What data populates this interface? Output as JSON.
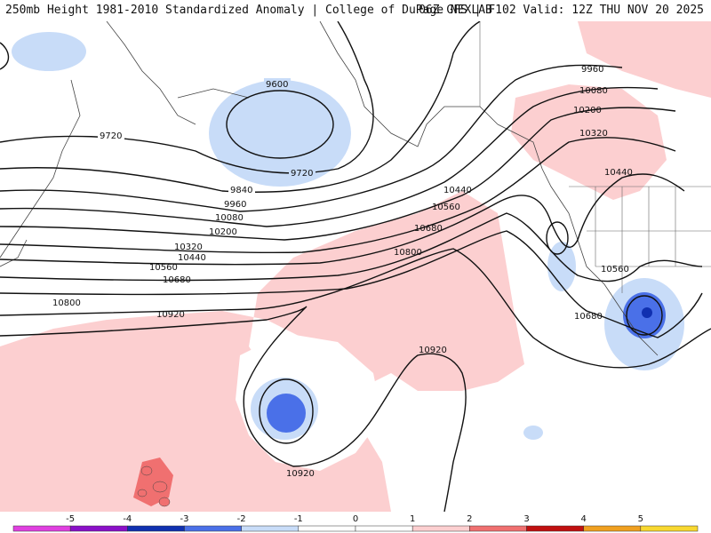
{
  "title": {
    "left": "250mb Height 1981-2010 Standardized Anomaly | College of DuPage NEXLAB",
    "right": "06Z GFS | F102 Valid: 12Z THU NOV 20 2025"
  },
  "contour_labels": [
    "9600",
    "9720",
    "9720",
    "9840",
    "9960",
    "9960",
    "10080",
    "10080",
    "10200",
    "10200",
    "10320",
    "10320",
    "10440",
    "10440",
    "10440",
    "10560",
    "10560",
    "10560",
    "10680",
    "10680",
    "10680",
    "10800",
    "10800",
    "10920",
    "10920",
    "10920"
  ],
  "colorbar": {
    "ticks": [
      "-5",
      "-4",
      "-3",
      "-2",
      "-1",
      "0",
      "1",
      "2",
      "3",
      "4",
      "5"
    ],
    "colors": [
      "#e040e0",
      "#8a10c8",
      "#1030b0",
      "#4a70e8",
      "#c8dcf8",
      "#ffffff",
      "#ffffff",
      "#fccfd0",
      "#f07070",
      "#c01010",
      "#f0a020",
      "#f8d830"
    ]
  }
}
